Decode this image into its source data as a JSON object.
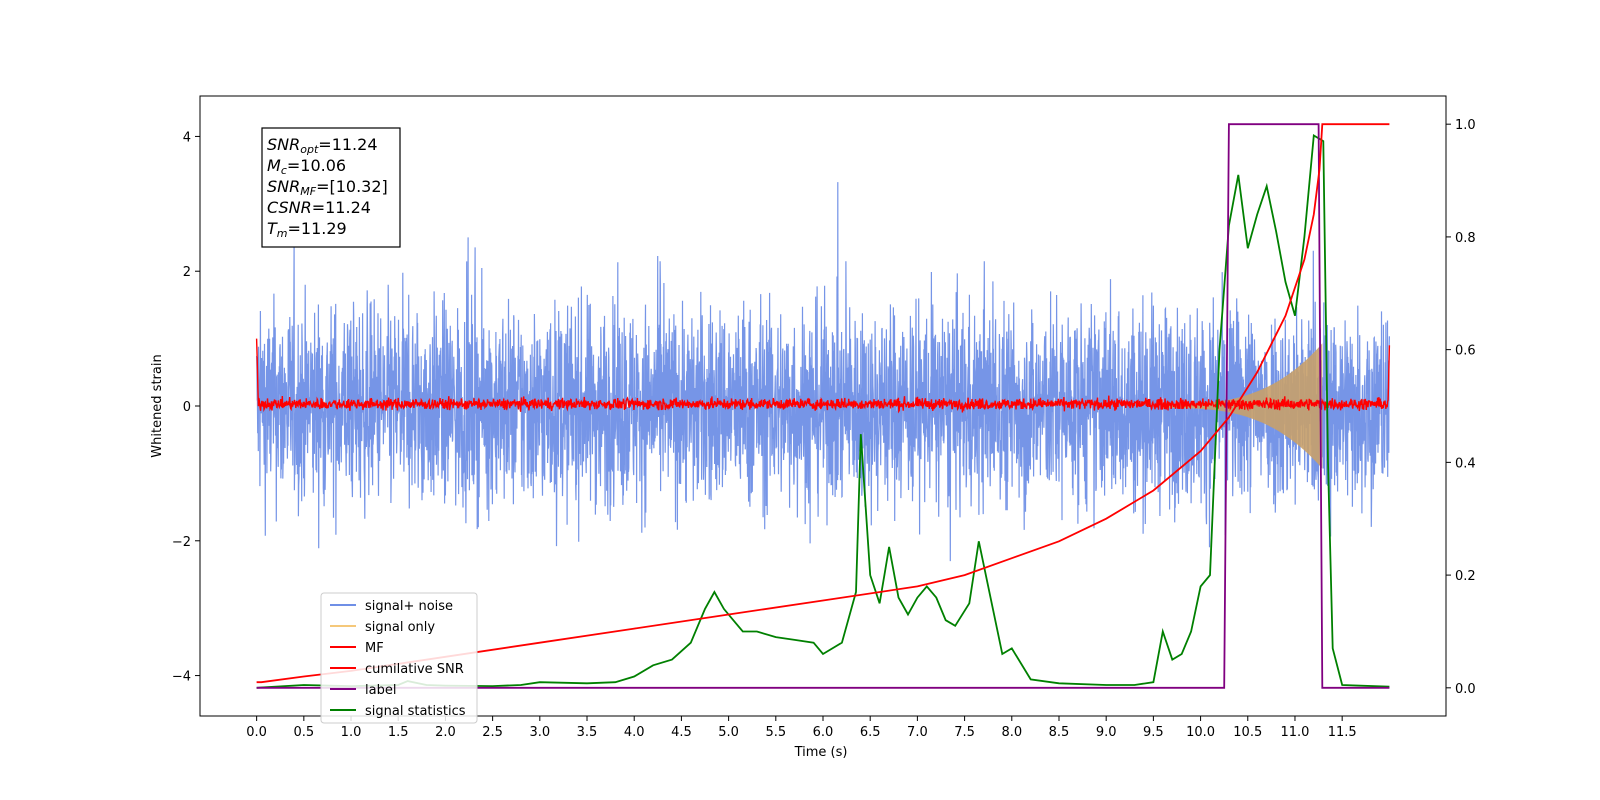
{
  "chart_data": {
    "type": "line",
    "xlabel": "Time (s)",
    "ylabel": "Whitened strain",
    "xlim": [
      -0.6,
      12.6
    ],
    "ylim": [
      -4.6,
      4.6
    ],
    "y2lim": [
      -0.05,
      1.05
    ],
    "x_ticks": [
      0.0,
      0.5,
      1.0,
      1.5,
      2.0,
      2.5,
      3.0,
      3.5,
      4.0,
      4.5,
      5.0,
      5.5,
      6.0,
      6.5,
      7.0,
      7.5,
      8.0,
      8.5,
      9.0,
      9.5,
      10.0,
      10.5,
      11.0,
      11.5
    ],
    "x_tick_labels": [
      "0.0",
      "0.5",
      "1.0",
      "1.5",
      "2.0",
      "2.5",
      "3.0",
      "3.5",
      "4.0",
      "4.5",
      "5.0",
      "5.5",
      "6.0",
      "6.5",
      "7.0",
      "7.5",
      "8.0",
      "8.5",
      "9.0",
      "9.5",
      "10.0",
      "10.5",
      "11.0",
      "11.5"
    ],
    "y_ticks": [
      -4,
      -2,
      0,
      2,
      4
    ],
    "y_tick_labels": [
      "−4",
      "−2",
      "0",
      "2",
      "4"
    ],
    "y2_ticks": [
      0.0,
      0.2,
      0.4,
      0.6,
      0.8,
      1.0
    ],
    "y2_tick_labels": [
      "0.0",
      "0.2",
      "0.4",
      "0.6",
      "0.8",
      "1.0"
    ],
    "legend_position": "lower-left",
    "annotation": [
      {
        "pre": "",
        "italic": "SNR",
        "sub": "opt",
        "post": "=11.24"
      },
      {
        "pre": "",
        "italic": "M",
        "sub": "c",
        "post": "=10.06"
      },
      {
        "pre": "",
        "italic": "SNR",
        "sub": "MF",
        "post": "=[10.32]"
      },
      {
        "pre": "",
        "italic": "CSNR",
        "sub": "",
        "post": "=11.24"
      },
      {
        "pre": "",
        "italic": "T",
        "sub": "m",
        "post": "=11.29"
      }
    ],
    "series": [
      {
        "name": "signal+ noise",
        "color": "#6f8fe6",
        "axis": "left",
        "style": "noise",
        "x_range": [
          0.0,
          12.0
        ],
        "envelope": [
          -2.5,
          2.5
        ]
      },
      {
        "name": "signal only",
        "color": "#f5c87a",
        "axis": "left",
        "style": "chirp",
        "x_range": [
          9.6,
          11.29
        ],
        "amplitude_max": 0.9
      },
      {
        "name": "MF",
        "color": "#ff0000",
        "axis": "left",
        "style": "noise",
        "x_range": [
          0.0,
          12.0
        ],
        "envelope": [
          -0.1,
          0.15
        ]
      },
      {
        "name": "cumilative SNR",
        "color": "#ff0000",
        "axis": "right",
        "x": [
          0.0,
          0.05,
          0.5,
          1.0,
          2.0,
          3.0,
          4.0,
          5.0,
          6.0,
          7.0,
          7.5,
          8.0,
          8.5,
          9.0,
          9.5,
          10.0,
          10.3,
          10.6,
          10.9,
          11.1,
          11.2,
          11.26,
          11.29,
          12.0
        ],
        "y": [
          0.01,
          0.01,
          0.02,
          0.03,
          0.055,
          0.08,
          0.105,
          0.13,
          0.155,
          0.18,
          0.2,
          0.23,
          0.26,
          0.3,
          0.35,
          0.42,
          0.48,
          0.56,
          0.66,
          0.76,
          0.84,
          0.92,
          1.0,
          1.0
        ]
      },
      {
        "name": "label",
        "color": "#800080",
        "axis": "right",
        "x": [
          0.0,
          10.25,
          10.3,
          11.25,
          11.29,
          12.0
        ],
        "y": [
          0.0,
          0.0,
          1.0,
          1.0,
          0.0,
          0.0
        ]
      },
      {
        "name": "signal statistics",
        "color": "#008000",
        "axis": "right",
        "x": [
          0.0,
          0.5,
          1.0,
          1.5,
          1.6,
          1.8,
          2.0,
          2.5,
          2.8,
          3.0,
          3.5,
          3.8,
          4.0,
          4.2,
          4.4,
          4.6,
          4.75,
          4.85,
          4.95,
          5.05,
          5.15,
          5.3,
          5.5,
          5.7,
          5.9,
          6.0,
          6.2,
          6.35,
          6.4,
          6.5,
          6.6,
          6.65,
          6.7,
          6.8,
          6.9,
          7.0,
          7.1,
          7.2,
          7.3,
          7.4,
          7.55,
          7.65,
          7.8,
          7.9,
          8.0,
          8.2,
          8.5,
          9.0,
          9.3,
          9.5,
          9.6,
          9.7,
          9.8,
          9.9,
          10.0,
          10.1,
          10.2,
          10.3,
          10.4,
          10.5,
          10.6,
          10.7,
          10.8,
          10.9,
          11.0,
          11.1,
          11.2,
          11.3,
          11.35,
          11.4,
          11.5,
          12.0
        ],
        "y": [
          0.0,
          0.005,
          0.003,
          0.005,
          0.012,
          0.005,
          0.004,
          0.003,
          0.005,
          0.01,
          0.008,
          0.01,
          0.02,
          0.04,
          0.05,
          0.08,
          0.14,
          0.17,
          0.14,
          0.12,
          0.1,
          0.1,
          0.09,
          0.085,
          0.08,
          0.06,
          0.08,
          0.17,
          0.45,
          0.2,
          0.15,
          0.2,
          0.25,
          0.16,
          0.13,
          0.16,
          0.18,
          0.16,
          0.12,
          0.11,
          0.15,
          0.26,
          0.14,
          0.06,
          0.07,
          0.015,
          0.008,
          0.005,
          0.005,
          0.01,
          0.1,
          0.05,
          0.06,
          0.1,
          0.18,
          0.2,
          0.6,
          0.82,
          0.91,
          0.78,
          0.84,
          0.89,
          0.81,
          0.72,
          0.66,
          0.8,
          0.98,
          0.97,
          0.4,
          0.07,
          0.005,
          0.002
        ]
      }
    ]
  }
}
